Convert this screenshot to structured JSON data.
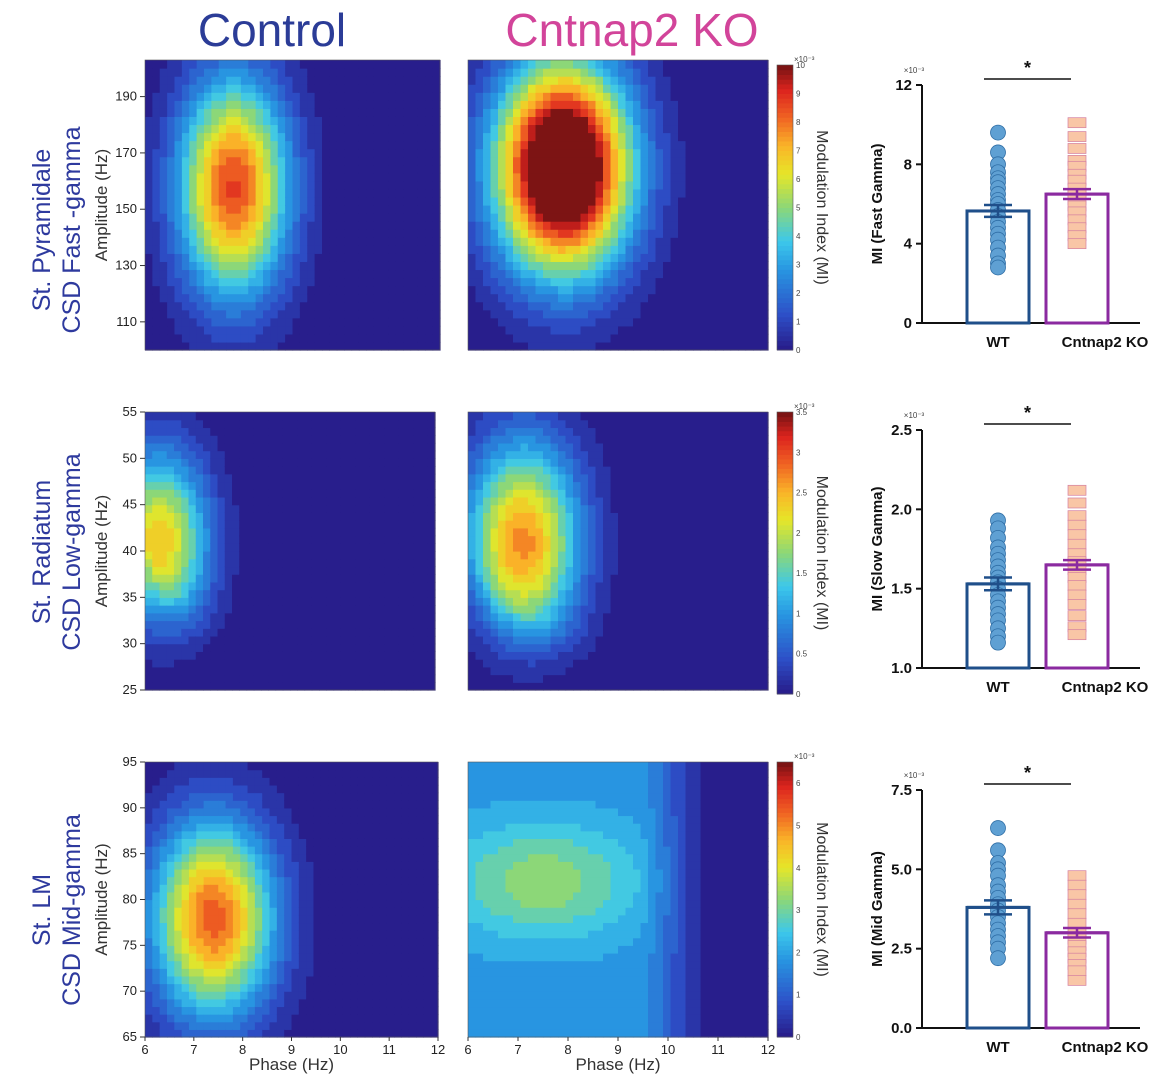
{
  "titles": {
    "control": "Control",
    "ko": "Cntnap2 KO",
    "control_color": "#2b3c97",
    "ko_color": "#d2449a"
  },
  "rows": [
    {
      "line1": "St. Pyramidale",
      "line2": "CSD Fast -gamma"
    },
    {
      "line1": "St. Radiatum",
      "line2": "CSD Low-gamma"
    },
    {
      "line1": "St. LM",
      "line2": "CSD Mid-gamma"
    }
  ],
  "colors": {
    "wt_bar": "#1f4f8a",
    "wt_dot": "#5fa0d3",
    "ko_bar": "#8b2aa0",
    "ko_dot": "#f9c6a6",
    "ko_dot_stroke": "#d47fa0"
  },
  "chart_data": [
    {
      "type": "heatmap",
      "title": "Control",
      "ylabel": "Amplitude (Hz)",
      "xlabel": "",
      "xlim": [
        6,
        12
      ],
      "ylim": [
        100,
        203
      ],
      "yticks": [
        "110",
        "130",
        "150",
        "170",
        "190"
      ],
      "colorbar": {
        "label": "Modulation Index (MI)",
        "ticks": [
          "0",
          "1",
          "2",
          "3",
          "4",
          "5",
          "6",
          "7",
          "8",
          "9",
          "10"
        ],
        "exponent": "×10⁻³",
        "range": [
          0,
          10
        ]
      },
      "peak": {
        "phase": 7.8,
        "amplitude": 158,
        "value": 9.0
      }
    },
    {
      "type": "heatmap",
      "title": "Cntnap2 KO",
      "xlim": [
        6,
        12
      ],
      "ylim": [
        100,
        203
      ],
      "peak": {
        "phase": 7.9,
        "amplitude": 165,
        "value": 10.0
      }
    },
    {
      "type": "heatmap",
      "title": "Control",
      "ylabel": "Amplitude (Hz)",
      "xlim": [
        6,
        12
      ],
      "ylim": [
        25,
        55
      ],
      "yticks": [
        "25",
        "30",
        "35",
        "40",
        "45",
        "50",
        "55"
      ],
      "colorbar": {
        "label": "Modulation Index (MI)",
        "ticks": [
          "0",
          "0.5",
          "1",
          "1.5",
          "2",
          "2.5",
          "3",
          "3.5"
        ],
        "exponent": "×10⁻³",
        "range": [
          0,
          3.5
        ]
      },
      "peak": {
        "phase": 6.3,
        "amplitude": 41,
        "value": 2.5
      }
    },
    {
      "type": "heatmap",
      "title": "Cntnap2 KO",
      "xlim": [
        6,
        12
      ],
      "ylim": [
        25,
        55
      ],
      "peak": {
        "phase": 7.1,
        "amplitude": 41,
        "value": 2.8
      }
    },
    {
      "type": "heatmap",
      "title": "Control",
      "ylabel": "Amplitude (Hz)",
      "xlabel": "Phase (Hz)",
      "xlim": [
        6,
        12
      ],
      "ylim": [
        65,
        95
      ],
      "xticks": [
        "6",
        "7",
        "8",
        "9",
        "10",
        "11",
        "12"
      ],
      "yticks": [
        "65",
        "70",
        "75",
        "80",
        "85",
        "90",
        "95"
      ],
      "colorbar": {
        "label": "Modulation Index (MI)",
        "ticks": [
          "0",
          "1",
          "2",
          "3",
          "4",
          "5",
          "6"
        ],
        "exponent": "×10⁻³",
        "range": [
          0,
          6.5
        ]
      },
      "peak": {
        "phase": 7.4,
        "amplitude": 78,
        "value": 5.6
      }
    },
    {
      "type": "heatmap",
      "title": "Cntnap2 KO",
      "xlabel": "Phase (Hz)",
      "xlim": [
        6,
        12
      ],
      "ylim": [
        65,
        95
      ],
      "xticks": [
        "6",
        "7",
        "8",
        "9",
        "10",
        "11",
        "12"
      ],
      "peak": {
        "phase": 7.5,
        "amplitude": 82,
        "value": 3.5
      }
    },
    {
      "type": "bar",
      "ylabel": "MI (Fast Gamma)",
      "exponent": "×10⁻³",
      "categories": [
        "WT",
        "Cntnap2 KO"
      ],
      "values": [
        5.65,
        6.5
      ],
      "sem": [
        0.3,
        0.25
      ],
      "ylim": [
        0,
        12
      ],
      "yticks": [
        "0",
        "4",
        "8",
        "12"
      ],
      "significance": "*",
      "points": [
        [
          9.6,
          8.6,
          8.0,
          7.6,
          7.3,
          7.1,
          6.8,
          6.5,
          6.2,
          6.0,
          5.7,
          5.4,
          5.1,
          4.8,
          4.5,
          4.2,
          3.8,
          3.4,
          3.0,
          2.8
        ],
        [
          10.1,
          9.4,
          8.8,
          8.2,
          7.9,
          7.5,
          7.2,
          6.8,
          6.5,
          6.2,
          5.9,
          5.6,
          5.2,
          4.8,
          4.4,
          4.0
        ]
      ]
    },
    {
      "type": "bar",
      "ylabel": "MI (Slow Gamma)",
      "exponent": "×10⁻³",
      "categories": [
        "WT",
        "Cntnap2 KO"
      ],
      "values": [
        1.53,
        1.65
      ],
      "sem": [
        0.04,
        0.03
      ],
      "ylim": [
        1.0,
        2.5
      ],
      "yticks": [
        "1.0",
        "1.5",
        "2.0",
        "2.5"
      ],
      "significance": "*",
      "points": [
        [
          1.93,
          1.88,
          1.82,
          1.76,
          1.72,
          1.68,
          1.64,
          1.6,
          1.57,
          1.54,
          1.5,
          1.46,
          1.42,
          1.38,
          1.34,
          1.3,
          1.25,
          1.2,
          1.16
        ],
        [
          2.12,
          2.04,
          1.96,
          1.9,
          1.84,
          1.78,
          1.72,
          1.67,
          1.62,
          1.57,
          1.52,
          1.46,
          1.4,
          1.33,
          1.26,
          1.21
        ]
      ]
    },
    {
      "type": "bar",
      "ylabel": "MI (Mid Gamma)",
      "exponent": "×10⁻³",
      "categories": [
        "WT",
        "Cntnap2 KO"
      ],
      "values": [
        3.8,
        3.0
      ],
      "sem": [
        0.22,
        0.15
      ],
      "ylim": [
        0,
        7.5
      ],
      "yticks": [
        "0.0",
        "2.5",
        "5.0",
        "7.5"
      ],
      "significance": "*",
      "points": [
        [
          6.3,
          5.6,
          5.2,
          5.0,
          4.8,
          4.5,
          4.3,
          4.1,
          3.9,
          3.7,
          3.5,
          3.3,
          3.1,
          2.9,
          2.7,
          2.5,
          2.2
        ],
        [
          4.8,
          4.5,
          4.2,
          3.9,
          3.6,
          3.3,
          3.0,
          2.8,
          2.6,
          2.4,
          2.2,
          2.0,
          1.8,
          1.5
        ]
      ]
    }
  ]
}
